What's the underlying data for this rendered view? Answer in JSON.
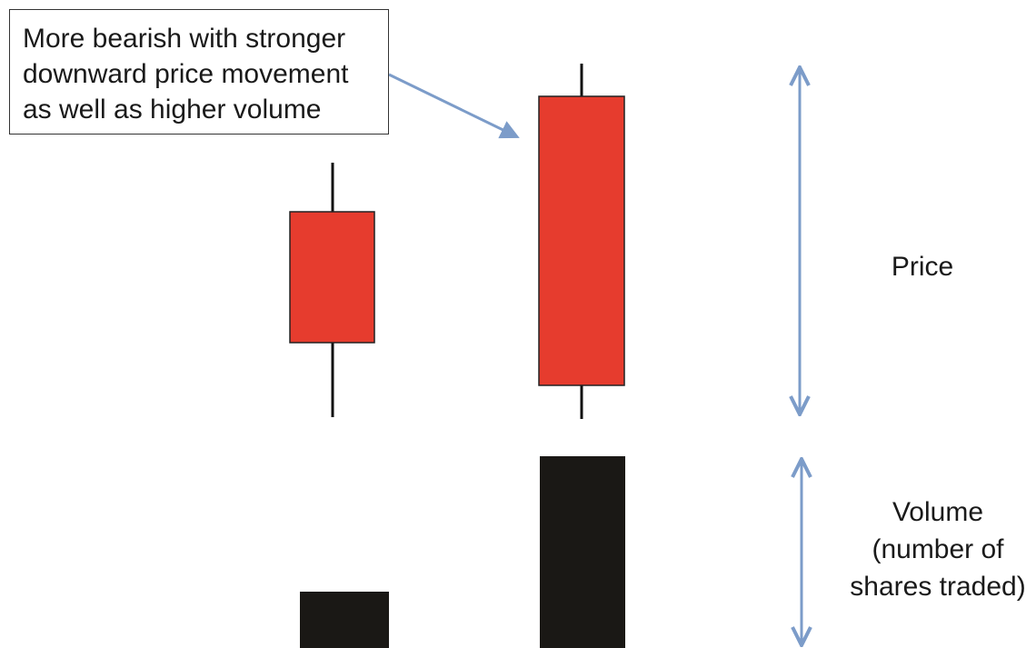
{
  "callout": {
    "lines": [
      "More bearish with stronger",
      "downward price movement",
      "as well as higher volume"
    ]
  },
  "labels": {
    "price": "Price",
    "volume_lines": [
      "Volume",
      "(number of",
      "shares traded)"
    ]
  },
  "colors": {
    "bearish_candle": "#e63c2e",
    "volume_bar": "#1a1815",
    "wick": "#111111",
    "dimension_arrow": "#7c9cc9",
    "callout_arrow": "#7c9cc9"
  }
}
